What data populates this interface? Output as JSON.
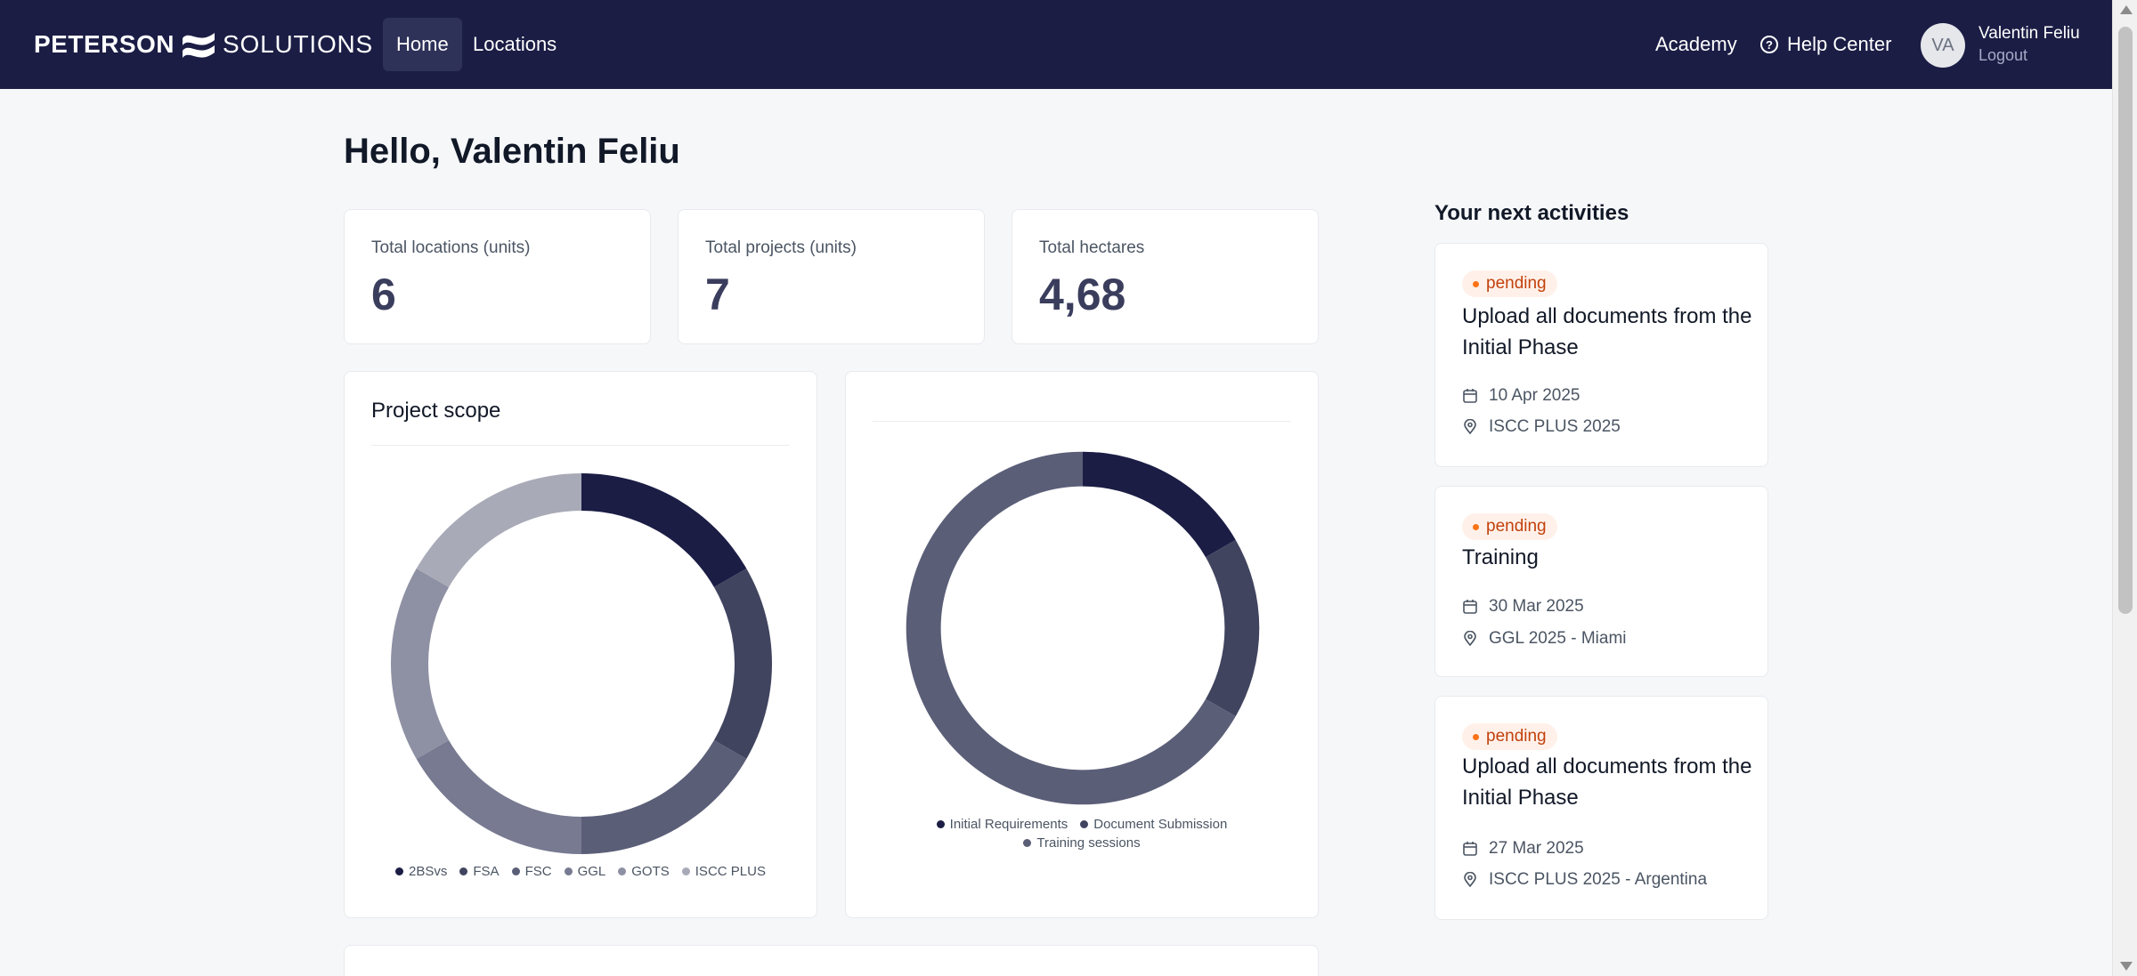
{
  "brand": {
    "word_bold": "PETERSON",
    "word_light": "SOLUTIONS",
    "logo_icon": "wave-mark-icon"
  },
  "nav": {
    "home": "Home",
    "locations": "Locations",
    "academy": "Academy",
    "help_center": "Help Center",
    "help_icon": "help-circle-icon"
  },
  "user": {
    "initials": "VA",
    "name": "Valentin Feliu",
    "logout": "Logout"
  },
  "greeting": "Hello, Valentin Feliu",
  "stats": [
    {
      "label": "Total locations (units)",
      "value": "6"
    },
    {
      "label": "Total projects (units)",
      "value": "7"
    },
    {
      "label": "Total hectares",
      "value": "4,68"
    }
  ],
  "chart_data": [
    {
      "type": "pie",
      "title": "Project scope",
      "categories": [
        "2BSvs",
        "FSA",
        "FSC",
        "GGL",
        "GOTS",
        "ISCC PLUS"
      ],
      "values": [
        1,
        1,
        1,
        1,
        1,
        1
      ],
      "colors": [
        "#1b1d45",
        "#41445f",
        "#5b5e77",
        "#777a90",
        "#8e90a3",
        "#a8aab7"
      ],
      "donut": true,
      "legend": "bottom"
    },
    {
      "type": "pie",
      "title": "",
      "categories": [
        "Initial Requirements",
        "Document Submission",
        "Training sessions"
      ],
      "values": [
        1,
        1,
        4
      ],
      "colors": [
        "#1b1d45",
        "#41445f",
        "#5b5e77"
      ],
      "donut": true,
      "legend": "bottom"
    }
  ],
  "activities": {
    "heading": "Your next activities",
    "items": [
      {
        "status": "pending",
        "title": "Upload all documents from the Initial Phase",
        "date": "10 Apr 2025",
        "location": "ISCC PLUS 2025"
      },
      {
        "status": "pending",
        "title": "Training",
        "date": "30 Mar 2025",
        "location": "GGL 2025 - Miami"
      },
      {
        "status": "pending",
        "title": "Upload all documents from the Initial Phase",
        "date": "27 Mar 2025",
        "location": "ISCC PLUS 2025 - Argentina"
      }
    ],
    "status_color": "#c2410c",
    "calendar_icon": "calendar-icon",
    "location_icon": "map-pin-icon"
  },
  "colors": {
    "navbar": "#1b1d45",
    "accent": "#3a3d5c"
  }
}
